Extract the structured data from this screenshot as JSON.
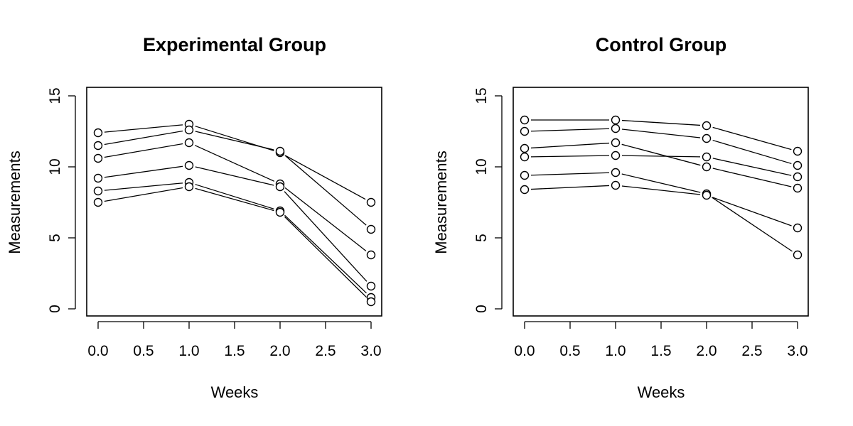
{
  "chart_data": [
    {
      "type": "line",
      "title": "Experimental Group",
      "xlabel": "Weeks",
      "ylabel": "Measurements",
      "xlim": [
        0,
        3
      ],
      "ylim": [
        0,
        15
      ],
      "xticks": [
        "0.0",
        "0.5",
        "1.0",
        "1.5",
        "2.0",
        "2.5",
        "3.0"
      ],
      "xtick_values": [
        0,
        0.5,
        1,
        1.5,
        2,
        2.5,
        3
      ],
      "yticks": [
        "0",
        "5",
        "10",
        "15"
      ],
      "ytick_values": [
        0,
        5,
        10,
        15
      ],
      "x": [
        0,
        1,
        2,
        3
      ],
      "series": [
        {
          "values": [
            12.4,
            13.0,
            11.0,
            7.5
          ]
        },
        {
          "values": [
            11.5,
            12.6,
            11.1,
            5.6
          ]
        },
        {
          "values": [
            10.6,
            11.7,
            8.8,
            3.8
          ]
        },
        {
          "values": [
            9.2,
            10.1,
            8.6,
            1.6
          ]
        },
        {
          "values": [
            8.3,
            8.9,
            6.9,
            0.8
          ]
        },
        {
          "values": [
            7.5,
            8.6,
            6.8,
            0.5
          ]
        }
      ],
      "marker": "open-circle",
      "grid": false,
      "legend": "none"
    },
    {
      "type": "line",
      "title": "Control Group",
      "xlabel": "Weeks",
      "ylabel": "Measurements",
      "xlim": [
        0,
        3
      ],
      "ylim": [
        0,
        15
      ],
      "xticks": [
        "0.0",
        "0.5",
        "1.0",
        "1.5",
        "2.0",
        "2.5",
        "3.0"
      ],
      "xtick_values": [
        0,
        0.5,
        1,
        1.5,
        2,
        2.5,
        3
      ],
      "yticks": [
        "0",
        "5",
        "10",
        "15"
      ],
      "ytick_values": [
        0,
        5,
        10,
        15
      ],
      "x": [
        0,
        1,
        2,
        3
      ],
      "series": [
        {
          "values": [
            13.3,
            13.3,
            12.9,
            11.1
          ]
        },
        {
          "values": [
            12.5,
            12.7,
            12.0,
            10.1
          ]
        },
        {
          "values": [
            11.3,
            11.7,
            10.0,
            8.5
          ]
        },
        {
          "values": [
            10.7,
            10.8,
            10.7,
            9.3
          ]
        },
        {
          "values": [
            9.4,
            9.6,
            8.1,
            3.8
          ]
        },
        {
          "values": [
            8.4,
            8.7,
            8.0,
            5.7
          ]
        }
      ],
      "marker": "open-circle",
      "grid": false,
      "legend": "none"
    }
  ]
}
